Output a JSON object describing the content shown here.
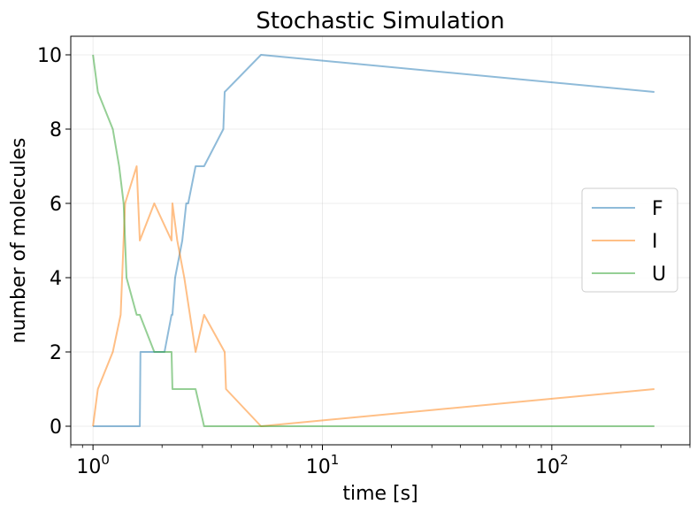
{
  "chart_data": {
    "type": "line",
    "title": "Stochastic Simulation",
    "xlabel": "time [s]",
    "ylabel": "number of molecules",
    "xscale": "log",
    "xlim": [
      0.8,
      400
    ],
    "ylim": [
      -0.5,
      10.5
    ],
    "grid": true,
    "legend_position": "center-right",
    "y_ticks": [
      0,
      2,
      4,
      6,
      8,
      10
    ],
    "y_tick_labels": [
      "0",
      "2",
      "4",
      "6",
      "8",
      "10"
    ],
    "x_ticks": [
      1,
      10,
      100
    ],
    "x_tick_labels": [
      {
        "base": "10",
        "exp": "0"
      },
      {
        "base": "10",
        "exp": "1"
      },
      {
        "base": "10",
        "exp": "2"
      }
    ],
    "series": [
      {
        "name": "F",
        "color": "#1f77b4",
        "x": [
          1.0,
          1.6,
          1.61,
          1.85,
          2.05,
          2.2,
          2.22,
          2.28,
          2.45,
          2.55,
          2.6,
          2.8,
          3.05,
          3.7,
          3.75,
          5.4,
          280
        ],
        "y": [
          0,
          0,
          2,
          2,
          2,
          3,
          3,
          4,
          5,
          6,
          6,
          7,
          7,
          8,
          9,
          10,
          9
        ]
      },
      {
        "name": "I",
        "color": "#ff7f0e",
        "x": [
          1.0,
          1.05,
          1.22,
          1.32,
          1.38,
          1.55,
          1.6,
          1.85,
          2.2,
          2.22,
          2.33,
          2.5,
          2.8,
          3.05,
          3.75,
          3.8,
          5.4,
          280
        ],
        "y": [
          0,
          1,
          2,
          3,
          6,
          7,
          5,
          6,
          5,
          6,
          5,
          4,
          2,
          3,
          2,
          1,
          0,
          1
        ]
      },
      {
        "name": "U",
        "color": "#2ca02c",
        "x": [
          1.0,
          1.05,
          1.22,
          1.3,
          1.36,
          1.4,
          1.55,
          1.6,
          1.85,
          2.2,
          2.22,
          2.8,
          3.05,
          5.4,
          280
        ],
        "y": [
          10,
          9,
          8,
          7,
          6,
          4,
          3,
          3,
          2,
          2,
          1,
          1,
          0,
          0,
          0
        ]
      }
    ]
  }
}
